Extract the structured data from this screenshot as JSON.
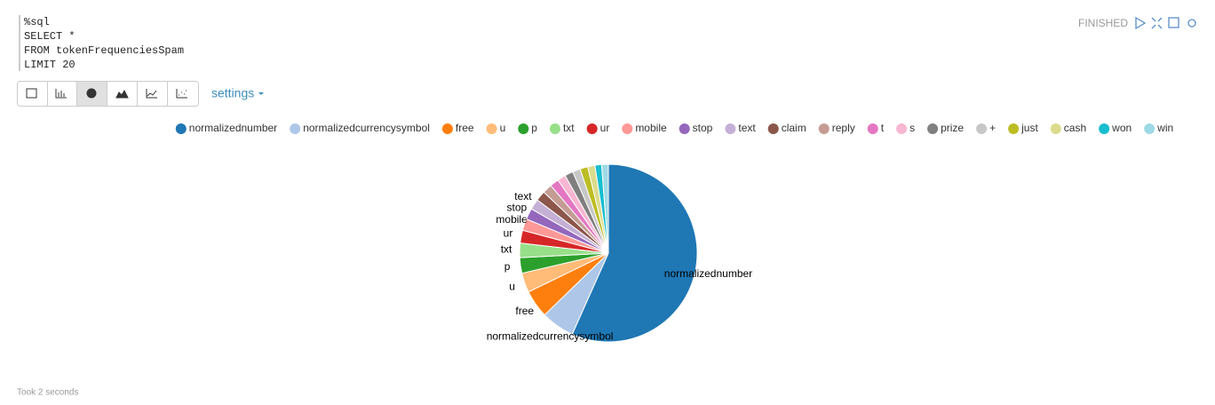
{
  "code": {
    "lines": [
      "%sql",
      "SELECT *",
      "FROM tokenFrequenciesSpam",
      "LIMIT 20"
    ]
  },
  "status": "FINISHED",
  "settings": "settings",
  "footer": "Took 2 seconds",
  "chart_data": {
    "type": "pie",
    "categories": [
      "normalizednumber",
      "normalizedcurrencysymbol",
      "free",
      "u",
      "p",
      "txt",
      "ur",
      "mobile",
      "stop",
      "text",
      "claim",
      "reply",
      "t",
      "s",
      "prize",
      "+",
      "just",
      "cash",
      "won",
      "win"
    ],
    "values": [
      56,
      6,
      5,
      3.5,
      2.8,
      2.6,
      2.3,
      2.1,
      2.0,
      1.9,
      1.8,
      1.7,
      1.6,
      1.5,
      1.5,
      1.4,
      1.4,
      1.3,
      1.2,
      1.2
    ],
    "colors": [
      "#1f77b4",
      "#aec7e8",
      "#ff7f0e",
      "#ffbb78",
      "#2ca02c",
      "#98df8a",
      "#d62728",
      "#ff9896",
      "#9467bd",
      "#c5b0d5",
      "#8c564b",
      "#c49c94",
      "#e377c2",
      "#f7b6d2",
      "#7f7f7f",
      "#c7c7c7",
      "#bcbd22",
      "#dbdb8d",
      "#17becf",
      "#9edae5"
    ],
    "legend": "top"
  }
}
